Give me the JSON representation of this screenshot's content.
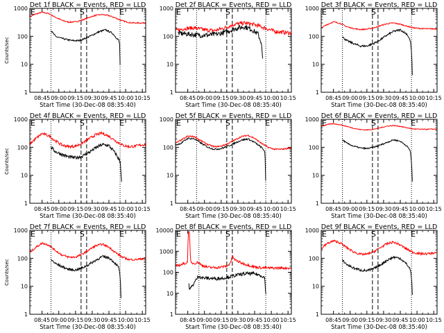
{
  "page": {
    "x_label": "Start Time (30-Dec-08 08:35:40)",
    "y_label": "Counts/sec",
    "x_ticks": [
      "08:45",
      "09:00",
      "09:15",
      "09:30",
      "09:45",
      "10:00",
      "10:15"
    ],
    "markers": {
      "left": "E",
      "mid": "S",
      "right": "E"
    }
  },
  "colors": {
    "events": "#000000",
    "lld": "#ff0000",
    "frame": "#000000"
  },
  "chart_data": [
    {
      "type": "line",
      "title": "Det 1f BLACK = Events, RED = LLD",
      "yscale": "log",
      "ylim": [
        1,
        1000
      ],
      "xlim": [
        8.5667,
        10.3
      ],
      "y_ticks": [
        "1",
        "10",
        "100",
        "1000"
      ],
      "vlines": {
        "dotted": [
          8.8833,
          9.9167
        ],
        "dashed": [
          9.3333,
          9.4167
        ]
      },
      "series": [
        {
          "color": "#000000",
          "noise": 0.03,
          "x": [
            8.8833,
            8.95,
            9.0,
            9.1,
            9.2,
            9.3,
            9.4,
            9.5,
            9.6,
            9.7,
            9.8,
            9.85,
            9.9,
            9.915,
            9.917
          ],
          "y": [
            160,
            100,
            90,
            78,
            70,
            70,
            85,
            110,
            145,
            170,
            130,
            95,
            70,
            40,
            10
          ]
        },
        {
          "color": "#ff0000",
          "noise": 0.02,
          "x": [
            8.5667,
            8.65,
            8.75,
            8.85,
            8.95,
            9.05,
            9.15,
            9.25,
            9.35,
            9.45,
            9.55,
            9.65,
            9.75,
            9.85,
            9.95,
            10.05,
            10.15,
            10.3
          ],
          "y": [
            500,
            620,
            720,
            650,
            480,
            370,
            320,
            330,
            380,
            470,
            560,
            600,
            550,
            450,
            360,
            310,
            300,
            300
          ]
        }
      ]
    },
    {
      "type": "line",
      "title": "Det 2f BLACK = Events, RED = LLD",
      "yscale": "log",
      "ylim": [
        1,
        1000
      ],
      "xlim": [
        8.5667,
        10.3
      ],
      "y_ticks": [
        "1",
        "10",
        "100",
        "1000"
      ],
      "vlines": {
        "dotted": [
          8.8833,
          9.9167
        ],
        "dashed": [
          9.3333,
          9.4167
        ]
      },
      "series": [
        {
          "color": "#000000",
          "noise": 0.09,
          "x": [
            8.6,
            8.75,
            8.9,
            9.05,
            9.2,
            9.35,
            9.5,
            9.6,
            9.7,
            9.8,
            9.85,
            9.87
          ],
          "y": [
            130,
            120,
            110,
            110,
            120,
            150,
            200,
            220,
            180,
            120,
            60,
            15
          ]
        },
        {
          "color": "#ff0000",
          "noise": 0.07,
          "x": [
            8.5667,
            8.7,
            8.85,
            9.0,
            9.15,
            9.3,
            9.45,
            9.6,
            9.75,
            9.9,
            10.05,
            10.3
          ],
          "y": [
            160,
            190,
            200,
            170,
            160,
            200,
            270,
            300,
            260,
            200,
            150,
            130
          ]
        }
      ]
    },
    {
      "type": "line",
      "title": "Det 3f BLACK = Events, RED = LLD",
      "yscale": "log",
      "ylim": [
        1,
        1000
      ],
      "xlim": [
        8.5667,
        10.3
      ],
      "y_ticks": [
        "1",
        "10",
        "100",
        "1000"
      ],
      "vlines": {
        "dotted": [
          8.8833,
          9.9167
        ],
        "dashed": [
          9.3333,
          9.4167
        ]
      },
      "series": [
        {
          "color": "#000000",
          "noise": 0.035,
          "x": [
            8.8833,
            8.95,
            9.05,
            9.15,
            9.25,
            9.35,
            9.45,
            9.55,
            9.65,
            9.75,
            9.85,
            9.9,
            9.92,
            9.93
          ],
          "y": [
            95,
            70,
            55,
            45,
            45,
            55,
            75,
            110,
            150,
            170,
            120,
            70,
            25,
            4
          ]
        },
        {
          "color": "#ff0000",
          "noise": 0.02,
          "x": [
            8.5667,
            8.65,
            8.75,
            8.85,
            8.95,
            9.05,
            9.15,
            9.25,
            9.35,
            9.45,
            9.55,
            9.65,
            9.75,
            9.85,
            9.95,
            10.05,
            10.15,
            10.3
          ],
          "y": [
            200,
            260,
            330,
            290,
            220,
            190,
            175,
            180,
            200,
            240,
            280,
            300,
            270,
            230,
            200,
            190,
            185,
            185
          ]
        }
      ]
    },
    {
      "type": "line",
      "title": "Det 4f BLACK = Events, RED = LLD",
      "yscale": "log",
      "ylim": [
        1,
        1000
      ],
      "xlim": [
        8.5667,
        10.3
      ],
      "y_ticks": [
        "1",
        "10",
        "100",
        "1000"
      ],
      "vlines": {
        "dotted": [
          8.8833,
          9.9167
        ],
        "dashed": [
          9.3333,
          9.4167
        ]
      },
      "series": [
        {
          "color": "#000000",
          "noise": 0.06,
          "x": [
            8.8833,
            8.95,
            9.05,
            9.15,
            9.25,
            9.35,
            9.45,
            9.55,
            9.65,
            9.75,
            9.85,
            9.92,
            9.94
          ],
          "y": [
            100,
            70,
            55,
            45,
            42,
            48,
            65,
            95,
            125,
            115,
            60,
            30,
            6
          ]
        },
        {
          "color": "#ff0000",
          "noise": 0.05,
          "x": [
            8.5667,
            8.65,
            8.75,
            8.85,
            8.95,
            9.05,
            9.15,
            9.25,
            9.35,
            9.45,
            9.55,
            9.65,
            9.75,
            9.85,
            9.95,
            10.05,
            10.15,
            10.3
          ],
          "y": [
            130,
            200,
            310,
            260,
            170,
            120,
            105,
            110,
            140,
            200,
            280,
            320,
            250,
            170,
            120,
            105,
            110,
            130
          ]
        }
      ]
    },
    {
      "type": "line",
      "title": "Det 5f BLACK = Events, RED = LLD",
      "yscale": "log",
      "ylim": [
        1,
        1000
      ],
      "xlim": [
        8.5667,
        10.3
      ],
      "y_ticks": [
        "1",
        "10",
        "100",
        "1000"
      ],
      "vlines": {
        "dotted": [
          8.8833,
          9.9167
        ],
        "dashed": [
          9.3333,
          9.4167
        ]
      },
      "series": [
        {
          "color": "#000000",
          "noise": 0.03,
          "x": [
            8.5667,
            8.65,
            8.75,
            8.85,
            8.95,
            9.05,
            9.15,
            9.25,
            9.35,
            9.45,
            9.55,
            9.65,
            9.75,
            9.85,
            9.9,
            9.91,
            9.915
          ],
          "y": [
            120,
            140,
            210,
            200,
            140,
            100,
            85,
            90,
            110,
            140,
            180,
            200,
            150,
            100,
            75,
            30,
            6
          ]
        },
        {
          "color": "#ff0000",
          "noise": 0.025,
          "x": [
            8.5667,
            8.65,
            8.75,
            8.85,
            8.95,
            9.05,
            9.15,
            9.25,
            9.35,
            9.45,
            9.55,
            9.65,
            9.75,
            9.85,
            9.95,
            10.05,
            10.15,
            10.3
          ],
          "y": [
            140,
            180,
            250,
            240,
            170,
            125,
            105,
            110,
            135,
            180,
            240,
            270,
            210,
            140,
            100,
            85,
            85,
            95
          ]
        }
      ]
    },
    {
      "type": "line",
      "title": "Det 6f BLACK = Events, RED = LLD",
      "yscale": "log",
      "ylim": [
        1,
        1000
      ],
      "xlim": [
        8.5667,
        10.3
      ],
      "y_ticks": [
        "1",
        "10",
        "100",
        "1000"
      ],
      "vlines": {
        "dotted": [
          8.8833,
          9.9167
        ],
        "dashed": [
          9.3333,
          9.4167
        ]
      },
      "series": [
        {
          "color": "#000000",
          "noise": 0.025,
          "x": [
            8.8833,
            8.95,
            9.05,
            9.15,
            9.25,
            9.35,
            9.45,
            9.55,
            9.65,
            9.75,
            9.85,
            9.9,
            9.92,
            9.93
          ],
          "y": [
            185,
            140,
            110,
            95,
            90,
            100,
            120,
            150,
            185,
            165,
            110,
            75,
            25,
            6
          ]
        },
        {
          "color": "#ff0000",
          "noise": 0.015,
          "x": [
            8.5667,
            8.65,
            8.75,
            8.85,
            8.95,
            9.05,
            9.15,
            9.25,
            9.35,
            9.45,
            9.55,
            9.65,
            9.75,
            9.85,
            9.95,
            10.05,
            10.15,
            10.3
          ],
          "y": [
            560,
            650,
            700,
            640,
            560,
            480,
            430,
            420,
            440,
            500,
            570,
            600,
            560,
            500,
            450,
            440,
            440,
            450
          ]
        }
      ]
    },
    {
      "type": "line",
      "title": "Det 7f BLACK = Events, RED = LLD",
      "yscale": "log",
      "ylim": [
        1,
        1000
      ],
      "xlim": [
        8.5667,
        10.3
      ],
      "y_ticks": [
        "1",
        "10",
        "100",
        "1000"
      ],
      "vlines": {
        "dotted": [
          8.8833,
          9.9167
        ],
        "dashed": [
          9.3333,
          9.4167
        ]
      },
      "series": [
        {
          "color": "#000000",
          "noise": 0.045,
          "x": [
            8.8833,
            8.95,
            9.05,
            9.15,
            9.25,
            9.35,
            9.45,
            9.55,
            9.65,
            9.75,
            9.85,
            9.9,
            9.92,
            9.93
          ],
          "y": [
            90,
            65,
            50,
            40,
            38,
            45,
            60,
            85,
            115,
            105,
            65,
            45,
            20,
            4
          ]
        },
        {
          "color": "#ff0000",
          "noise": 0.035,
          "x": [
            8.5667,
            8.65,
            8.75,
            8.85,
            8.95,
            9.05,
            9.15,
            9.25,
            9.35,
            9.45,
            9.55,
            9.65,
            9.75,
            9.85,
            9.95,
            10.05,
            10.15,
            10.3
          ],
          "y": [
            160,
            240,
            350,
            300,
            190,
            130,
            110,
            110,
            140,
            200,
            280,
            320,
            250,
            160,
            110,
            90,
            90,
            100
          ]
        }
      ]
    },
    {
      "type": "line",
      "title": "Det 8f BLACK = Events, RED = LLD",
      "yscale": "log",
      "ylim": [
        1,
        10000
      ],
      "xlim": [
        8.5667,
        10.3
      ],
      "y_ticks": [
        "1",
        "10",
        "100",
        "1000",
        "10000"
      ],
      "vlines": {
        "dotted": [
          8.9167,
          9.9167
        ],
        "dashed": [
          9.3333,
          9.4167
        ]
      },
      "series": [
        {
          "color": "#000000",
          "noise": 0.08,
          "x": [
            8.7667,
            8.78,
            8.9167,
            8.95,
            9.05,
            9.15,
            9.25,
            9.35,
            9.45,
            9.55,
            9.65,
            9.75,
            9.85,
            9.9,
            9.91,
            9.92
          ],
          "y": [
            25,
            15,
            70,
            55,
            52,
            50,
            52,
            58,
            70,
            80,
            88,
            85,
            70,
            55,
            20,
            8
          ]
        },
        {
          "color": "#ff0000",
          "noise": 0.06,
          "x": [
            8.5667,
            8.65,
            8.75,
            8.755,
            8.76,
            8.765,
            8.77,
            8.78,
            8.79,
            8.8,
            8.85,
            8.9167,
            8.95,
            9.05,
            9.15,
            9.25,
            9.35,
            9.4,
            9.42,
            9.45,
            9.55,
            9.65,
            9.75,
            9.85,
            9.95,
            10.05,
            10.3
          ],
          "y": [
            200,
            230,
            300,
            9000,
            8000,
            9000,
            12000,
            3000,
            400,
            280,
            270,
            300,
            220,
            175,
            165,
            180,
            200,
            350,
            600,
            400,
            280,
            220,
            180,
            165,
            160,
            160,
            160
          ]
        }
      ]
    },
    {
      "type": "line",
      "title": "Det 9f BLACK = Events, RED = LLD",
      "yscale": "log",
      "ylim": [
        1,
        1000
      ],
      "xlim": [
        8.5667,
        10.3
      ],
      "y_ticks": [
        "1",
        "10",
        "100",
        "1000"
      ],
      "vlines": {
        "dotted": [
          8.8833,
          9.9167
        ],
        "dashed": [
          9.3333,
          9.4167
        ]
      },
      "series": [
        {
          "color": "#000000",
          "noise": 0.045,
          "x": [
            8.8833,
            8.95,
            9.05,
            9.15,
            9.25,
            9.35,
            9.45,
            9.55,
            9.65,
            9.75,
            9.85,
            9.9,
            9.92,
            9.93
          ],
          "y": [
            85,
            60,
            45,
            38,
            36,
            42,
            58,
            85,
            110,
            100,
            60,
            40,
            18,
            5
          ]
        },
        {
          "color": "#ff0000",
          "noise": 0.04,
          "x": [
            8.5667,
            8.65,
            8.75,
            8.85,
            8.95,
            9.05,
            9.15,
            9.25,
            9.35,
            9.45,
            9.55,
            9.65,
            9.75,
            9.85,
            9.95,
            10.05,
            10.15,
            10.3
          ],
          "y": [
            220,
            330,
            420,
            360,
            240,
            170,
            140,
            140,
            170,
            240,
            330,
            380,
            300,
            210,
            160,
            145,
            145,
            160
          ]
        }
      ]
    }
  ]
}
